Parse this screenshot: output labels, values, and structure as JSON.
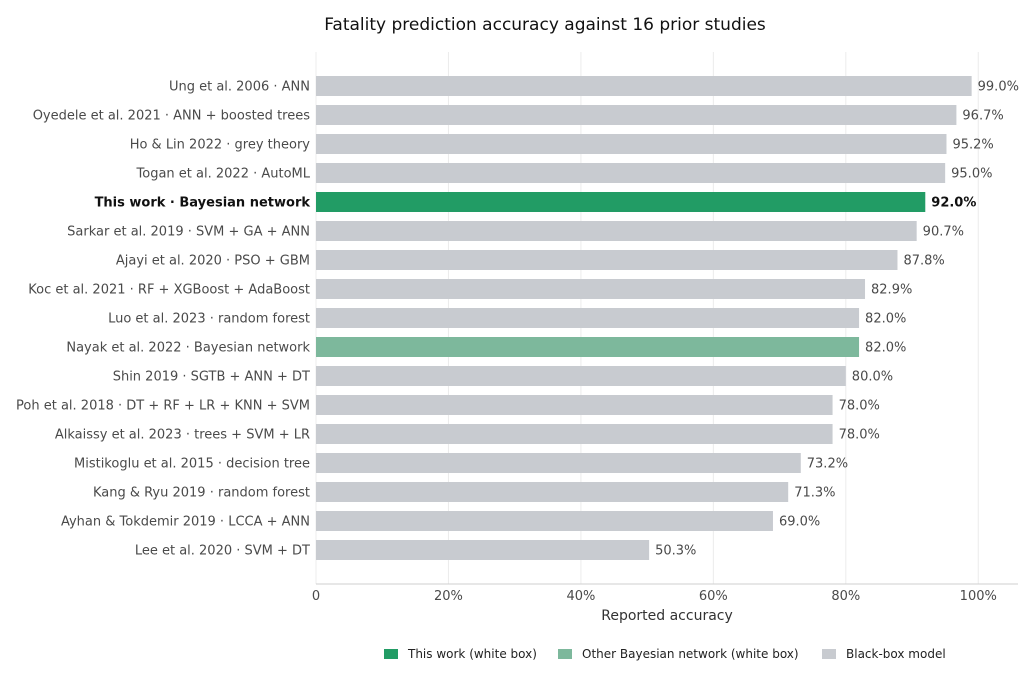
{
  "chart_data": {
    "type": "bar",
    "orientation": "horizontal",
    "title": "Fatality prediction accuracy against 16 prior studies",
    "xlabel": "Reported accuracy",
    "ylabel": "",
    "xlim": [
      0,
      106
    ],
    "xticks": [
      0,
      20,
      40,
      60,
      80,
      100
    ],
    "xtick_labels": [
      "0",
      "20%",
      "40%",
      "60%",
      "80%",
      "100%"
    ],
    "grid": "vertical",
    "legend_position": "bottom",
    "colors": {
      "this_work": "#229C65",
      "other_bayesian": "#7DB89C",
      "black_box": "#C8CBD0"
    },
    "legend": [
      {
        "label": "This work (white box)",
        "group": "this_work"
      },
      {
        "label": "Other Bayesian network (white box)",
        "group": "other_bayesian"
      },
      {
        "label": "Black-box model",
        "group": "black_box"
      }
    ],
    "categories": [
      "Ung et al. 2006 · ANN",
      "Oyedele et al. 2021 · ANN + boosted trees",
      "Ho & Lin 2022 · grey theory",
      "Togan et al. 2022 · AutoML",
      "This work · Bayesian network",
      "Sarkar et al. 2019 · SVM + GA + ANN",
      "Ajayi et al. 2020 · PSO + GBM",
      "Koc et al. 2021 · RF + XGBoost + AdaBoost",
      "Luo et al. 2023 · random forest",
      "Nayak et al. 2022 · Bayesian network",
      "Shin 2019 · SGTB + ANN + DT",
      "Poh et al. 2018 · DT + RF + LR + KNN + SVM",
      "Alkaissy et al. 2023 · trees + SVM + LR",
      "Mistikoglu et al. 2015 · decision tree",
      "Kang & Ryu 2019 · random forest",
      "Ayhan & Tokdemir 2019 · LCCA + ANN",
      "Lee et al. 2020 · SVM + DT"
    ],
    "values": [
      99.0,
      96.7,
      95.2,
      95.0,
      92.0,
      90.7,
      87.8,
      82.9,
      82.0,
      82.0,
      80.0,
      78.0,
      78.0,
      73.2,
      71.3,
      69.0,
      50.3
    ],
    "value_labels": [
      "99.0%",
      "96.7%",
      "95.2%",
      "95.0%",
      "92.0%",
      "90.7%",
      "87.8%",
      "82.9%",
      "82.0%",
      "82.0%",
      "80.0%",
      "78.0%",
      "78.0%",
      "73.2%",
      "71.3%",
      "69.0%",
      "50.3%"
    ],
    "groups": [
      "black_box",
      "black_box",
      "black_box",
      "black_box",
      "this_work",
      "black_box",
      "black_box",
      "black_box",
      "black_box",
      "other_bayesian",
      "black_box",
      "black_box",
      "black_box",
      "black_box",
      "black_box",
      "black_box",
      "black_box"
    ]
  }
}
